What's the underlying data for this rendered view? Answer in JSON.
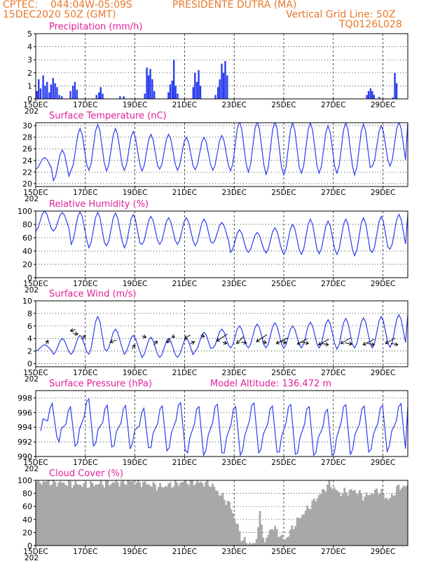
{
  "header": {
    "source": "CPTEC:",
    "coords": "044:04W-05:09S",
    "station": "PRESIDENTE DUTRA (MA)",
    "run": "15DEC2020 50Z (GMT)",
    "grid_note": "Vertical Grid Line: 50Z",
    "model": "TQ0126L028"
  },
  "x_ticks": [
    "15DEC",
    "17DEC",
    "19DEC",
    "21DEC",
    "23DEC",
    "25DEC",
    "27DEC",
    "29DEC"
  ],
  "x_year_fragment": "202",
  "model_altitude": "Model Altitude: 136.472 m",
  "chart_data": [
    {
      "type": "bar",
      "title": "Precipitation (mm/h)",
      "x_unit": "days since 15DEC",
      "ylim": [
        0,
        5
      ],
      "yticks": [
        0,
        1,
        2,
        3,
        4,
        5
      ],
      "bars": [
        [
          0.05,
          0.6
        ],
        [
          0.12,
          1.5
        ],
        [
          0.2,
          0.8
        ],
        [
          0.3,
          1.8
        ],
        [
          0.38,
          1.0
        ],
        [
          0.46,
          1.3
        ],
        [
          0.55,
          0.5
        ],
        [
          0.62,
          1.1
        ],
        [
          0.7,
          1.6
        ],
        [
          0.78,
          1.2
        ],
        [
          0.86,
          0.9
        ],
        [
          0.95,
          0.3
        ],
        [
          1.05,
          0.2
        ],
        [
          1.4,
          0.6
        ],
        [
          1.5,
          1.0
        ],
        [
          1.58,
          1.3
        ],
        [
          1.66,
          0.7
        ],
        [
          2.45,
          0.3
        ],
        [
          2.55,
          0.5
        ],
        [
          2.62,
          0.9
        ],
        [
          2.7,
          0.4
        ],
        [
          3.4,
          0.2
        ],
        [
          3.55,
          0.2
        ],
        [
          4.4,
          0.4
        ],
        [
          4.48,
          2.4
        ],
        [
          4.55,
          1.8
        ],
        [
          4.62,
          2.3
        ],
        [
          4.7,
          1.5
        ],
        [
          4.78,
          0.6
        ],
        [
          5.35,
          0.5
        ],
        [
          5.42,
          1.1
        ],
        [
          5.5,
          1.4
        ],
        [
          5.57,
          3.0
        ],
        [
          5.64,
          1.0
        ],
        [
          5.72,
          0.4
        ],
        [
          6.35,
          0.9
        ],
        [
          6.42,
          2.0
        ],
        [
          6.5,
          1.3
        ],
        [
          6.57,
          2.2
        ],
        [
          6.64,
          1.0
        ],
        [
          7.25,
          0.3
        ],
        [
          7.35,
          0.9
        ],
        [
          7.42,
          1.5
        ],
        [
          7.5,
          2.7
        ],
        [
          7.57,
          2.0
        ],
        [
          7.64,
          2.9
        ],
        [
          7.72,
          1.8
        ],
        [
          13.35,
          0.3
        ],
        [
          13.42,
          0.6
        ],
        [
          13.5,
          0.8
        ],
        [
          13.57,
          0.6
        ],
        [
          13.64,
          0.3
        ],
        [
          13.85,
          0.15
        ],
        [
          14.4,
          0.1
        ],
        [
          14.48,
          2.0
        ],
        [
          14.55,
          1.2
        ]
      ]
    },
    {
      "type": "line",
      "title": "Surface Temperature (nC)",
      "x_unit": "days since 15DEC",
      "ylim": [
        19.5,
        30.5
      ],
      "yticks": [
        20,
        22,
        24,
        26,
        28,
        30
      ],
      "peaks": [
        24.5,
        25.8,
        29.5,
        30.2,
        29.5,
        29.0,
        28.5,
        28.5,
        28.0,
        28.0,
        28.3,
        30.7,
        30.7,
        30.7,
        30.5,
        30.5,
        30.0,
        30.5,
        30.3,
        30.0,
        30.6
      ],
      "troughs": [
        22.5,
        20.5,
        22.3,
        22.3,
        22.2,
        22.3,
        22.2,
        22.5,
        22.3,
        22.4,
        22.3,
        22.2,
        22.0,
        21.5,
        21.5,
        21.8,
        21.8,
        21.8,
        21.5,
        23.0,
        23.0
      ]
    },
    {
      "type": "line",
      "title": "Relative Humidity (%)",
      "x_unit": "days since 15DEC",
      "ylim": [
        0,
        100
      ],
      "yticks": [
        0,
        20,
        40,
        60,
        80,
        100
      ],
      "peaks": [
        100,
        98,
        99,
        98,
        97,
        95,
        92,
        90,
        90,
        88,
        83,
        72,
        68,
        75,
        80,
        88,
        85,
        88,
        90,
        92,
        95
      ],
      "troughs": [
        70,
        70,
        50,
        45,
        48,
        45,
        50,
        50,
        50,
        48,
        52,
        38,
        38,
        37,
        35,
        35,
        36,
        35,
        33,
        38,
        43
      ]
    },
    {
      "type": "line",
      "title": "Surface Wind (m/s)",
      "x_unit": "days since 15DEC",
      "ylim": [
        -0.5,
        10
      ],
      "yticks": [
        0,
        2,
        4,
        6,
        8,
        10
      ],
      "peaks": [
        3.0,
        4.0,
        4.5,
        7.5,
        5.5,
        4.5,
        4.2,
        4.0,
        4.0,
        5.0,
        5.5,
        6.0,
        6.3,
        6.5,
        6.0,
        6.6,
        7.0,
        7.2,
        7.3,
        7.5,
        7.8
      ],
      "troughs": [
        2.0,
        1.5,
        1.5,
        1.5,
        2.0,
        1.5,
        1.0,
        1.0,
        1.0,
        2.0,
        2.5,
        2.5,
        2.5,
        2.5,
        2.5,
        2.5,
        2.5,
        2.3,
        2.5,
        2.5,
        2.6
      ],
      "arrows": [
        [
          0.5,
          3.7,
          -3,
          5
        ],
        [
          1.4,
          5.2,
          7,
          -2
        ],
        [
          1.7,
          4.7,
          -7,
          -1
        ],
        [
          2.0,
          4.5,
          -5,
          6
        ],
        [
          3.0,
          3.4,
          9,
          -3
        ],
        [
          4.0,
          3.0,
          -4,
          6
        ],
        [
          4.45,
          4.2,
          -6,
          -2
        ],
        [
          4.9,
          3.6,
          -5,
          6
        ],
        [
          5.3,
          3.3,
          4,
          -7
        ],
        [
          5.6,
          4.2,
          -4,
          -2
        ],
        [
          6.0,
          4.0,
          8,
          -5
        ],
        [
          6.4,
          3.5,
          -6,
          3
        ],
        [
          6.8,
          4.3,
          -5,
          -2
        ],
        [
          7.3,
          3.6,
          15,
          -10
        ],
        [
          7.7,
          3.2,
          -6,
          -2
        ],
        [
          8.1,
          3.2,
          10,
          -10
        ],
        [
          8.5,
          3.3,
          -8,
          -1
        ],
        [
          8.9,
          3.5,
          15,
          -10
        ],
        [
          9.3,
          3.3,
          -6,
          -2
        ],
        [
          9.7,
          3.2,
          16,
          -8
        ],
        [
          10.1,
          3.3,
          -8,
          -2
        ],
        [
          10.55,
          3.1,
          14,
          -8
        ],
        [
          11.0,
          3.2,
          -10,
          -2
        ],
        [
          11.4,
          3.0,
          15,
          -8
        ],
        [
          11.8,
          3.0,
          -10,
          -2
        ],
        [
          12.3,
          3.2,
          14,
          -8
        ],
        [
          12.75,
          3.1,
          -10,
          -2
        ],
        [
          13.2,
          3.0,
          16,
          -8
        ],
        [
          13.65,
          3.0,
          -10,
          -2
        ],
        [
          14.1,
          3.2,
          14,
          -8
        ],
        [
          14.6,
          3.0,
          -10,
          -2
        ]
      ]
    },
    {
      "type": "line",
      "title": "Surface Pressure (hPa)",
      "x_unit": "days since 15DEC",
      "ylim": [
        990,
        999
      ],
      "yticks": [
        990,
        992,
        994,
        996,
        998
      ],
      "main_peaks": [
        996.5,
        996.2,
        997.5,
        996.5,
        996.5,
        996.0,
        996.5,
        997.0,
        996.5,
        996.8,
        996.5,
        997.0,
        996.5,
        996.8,
        996.5,
        996.0,
        996.8,
        996.5,
        996.6,
        996.8
      ],
      "main_troughs": [
        993.5,
        992.0,
        991.8,
        991.8,
        991.5,
        991.8,
        991.2,
        991.2,
        990.5,
        990.8,
        990.5,
        990.8,
        991.0,
        990.6,
        990.5,
        990.6,
        990.5,
        991.0,
        991.0,
        991.5
      ]
    },
    {
      "type": "bar",
      "title": "Cloud Cover (%)",
      "x_unit": "days since 15DEC",
      "ylim": [
        0,
        100
      ],
      "yticks": [
        0,
        20,
        40,
        60,
        80,
        100
      ],
      "profile": [
        [
          0,
          98
        ],
        [
          1,
          96
        ],
        [
          2,
          93
        ],
        [
          3,
          96
        ],
        [
          4,
          98
        ],
        [
          5,
          90
        ],
        [
          6,
          98
        ],
        [
          7,
          95
        ],
        [
          7.8,
          62
        ],
        [
          8.3,
          8
        ],
        [
          8.8,
          1
        ],
        [
          9.0,
          46
        ],
        [
          9.2,
          4
        ],
        [
          9.5,
          30
        ],
        [
          10.0,
          8
        ],
        [
          10.5,
          38
        ],
        [
          11.0,
          60
        ],
        [
          11.8,
          95
        ],
        [
          12.2,
          80
        ],
        [
          12.8,
          85
        ],
        [
          13.2,
          75
        ],
        [
          13.8,
          85
        ],
        [
          14.2,
          70
        ],
        [
          14.6,
          90
        ]
      ]
    }
  ]
}
